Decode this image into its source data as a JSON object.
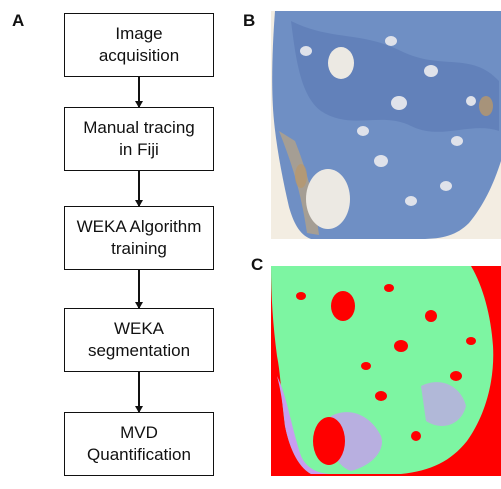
{
  "labels": {
    "a": "A",
    "b": "B",
    "c": "C"
  },
  "flowchart": [
    {
      "line1": "Image",
      "line2": "acquisition"
    },
    {
      "line1": "Manual tracing",
      "line2": "in Fiji"
    },
    {
      "line1": "WEKA Algorithm",
      "line2": "training"
    },
    {
      "line1": "WEKA",
      "line2": "segmentation"
    },
    {
      "line1": "MVD",
      "line2": "Quantification"
    }
  ],
  "colors": {
    "stain_bg": "#f3ede2",
    "stain_tissue": "#6f8fc4",
    "stain_dark": "#3f5f9c",
    "seg_bg": "#ff0000",
    "seg_tissue": "#7df5a2",
    "seg_vessel": "#c79ef0"
  }
}
